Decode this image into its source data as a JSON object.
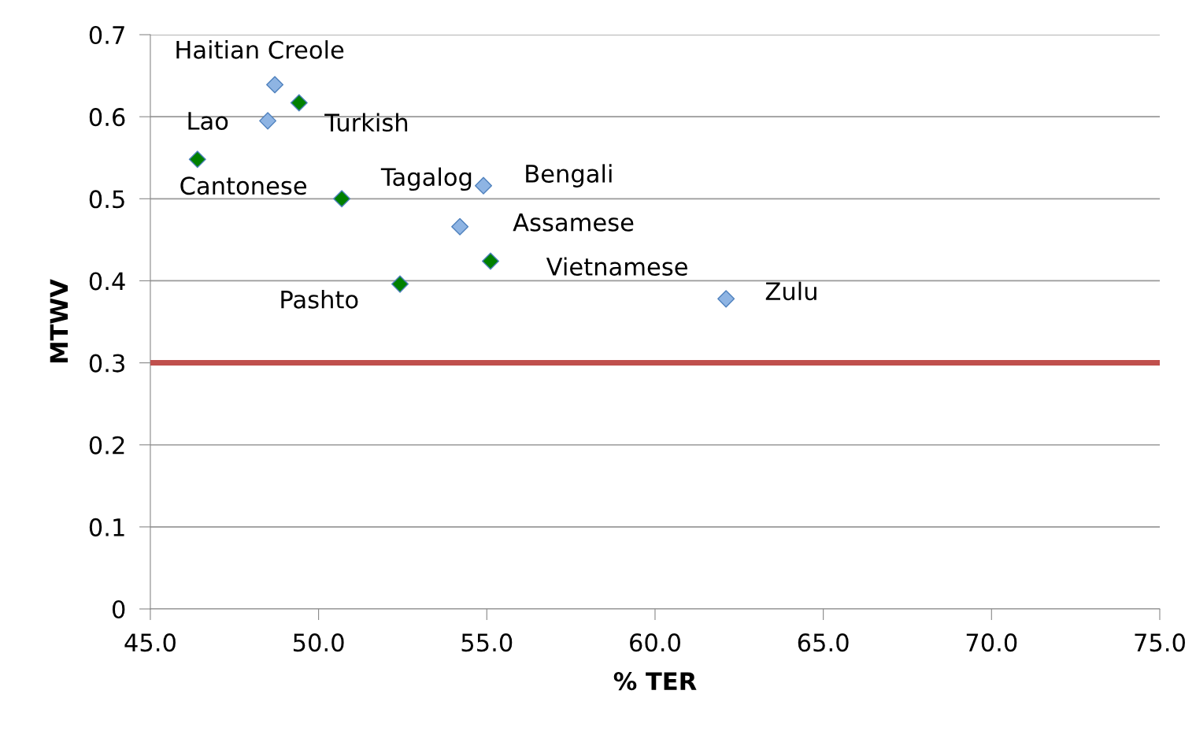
{
  "chart_data": {
    "type": "scatter",
    "xlabel": "% TER",
    "ylabel": "MTWV",
    "series": [
      {
        "color": "#8eb4e3",
        "marker": "diamond",
        "x": [
          48.7,
          48.49,
          54.9,
          54.2,
          62.11
        ],
        "values": [
          0.639,
          0.595,
          0.516,
          0.466,
          0.378
        ]
      },
      {
        "color": "#008000",
        "marker": "diamond",
        "x": [
          49.42,
          46.4,
          50.69,
          55.11,
          52.42
        ],
        "values": [
          0.617,
          0.548,
          0.5,
          0.424,
          0.396
        ]
      }
    ],
    "annotations": [
      {
        "text": "Haitian Creole",
        "x": 48.7,
        "y": 0.639
      },
      {
        "text": "Turkish",
        "x": 49.42,
        "y": 0.617
      },
      {
        "text": "Lao",
        "x": 48.49,
        "y": 0.595
      },
      {
        "text": "Cantonese",
        "x": 46.4,
        "y": 0.548
      },
      {
        "text": "Tagalog",
        "x": 50.69,
        "y": 0.5
      },
      {
        "text": "Bengali",
        "x": 54.9,
        "y": 0.516
      },
      {
        "text": "Assamese",
        "x": 54.2,
        "y": 0.466
      },
      {
        "text": "Vietnamese",
        "x": 55.11,
        "y": 0.424
      },
      {
        "text": "Pashto",
        "x": 52.42,
        "y": 0.396
      },
      {
        "text": "Zulu",
        "x": 62.11,
        "y": 0.378
      }
    ],
    "ref_lines": [
      {
        "axis": "y",
        "value": 0.3,
        "color": "#c0504d"
      }
    ],
    "xlim": [
      45,
      75
    ],
    "xticks": [
      {
        "value": 45,
        "label": "45.0"
      },
      {
        "value": 50,
        "label": "50.0"
      },
      {
        "value": 55,
        "label": "55.0"
      },
      {
        "value": 60,
        "label": "60.0"
      },
      {
        "value": 65,
        "label": "65.0"
      },
      {
        "value": 70,
        "label": "70.0"
      },
      {
        "value": 75,
        "label": "75.0"
      }
    ],
    "ylim": [
      0,
      0.7
    ],
    "yticks": [
      0,
      0.1,
      0.2,
      0.3,
      0.4,
      0.5,
      0.6,
      0.7
    ],
    "grid": "y",
    "legend": false
  }
}
